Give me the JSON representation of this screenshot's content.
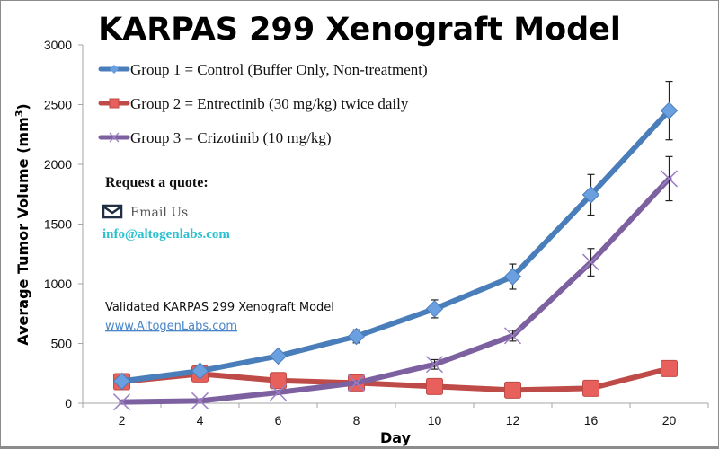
{
  "chart_data": {
    "type": "line",
    "title": "KARPAS 299 Xenograft Model",
    "xlabel": "Day",
    "ylabel_main": "Average Tumor Volume (mm",
    "ylabel_sup": "3",
    "ylabel_close": ")",
    "categories": [
      "2",
      "4",
      "6",
      "8",
      "10",
      "12",
      "16",
      "20"
    ],
    "ylim": [
      0,
      3000
    ],
    "yticks": [
      0,
      500,
      1000,
      1500,
      2000,
      2500,
      3000
    ],
    "grid": false,
    "legend_position": "top-left",
    "series": [
      {
        "name": "Group 1 = Control (Buffer Only, Non-treatment)",
        "color": "#4a7ebb",
        "marker_color": "#6a9fe0",
        "marker": "diamond",
        "values": [
          185,
          270,
          395,
          560,
          790,
          1060,
          1745,
          2450
        ],
        "errors": [
          null,
          null,
          null,
          55,
          75,
          105,
          170,
          245
        ]
      },
      {
        "name": "Group 2 = Entrectinib (30 mg/kg) twice daily",
        "color": "#be4b48",
        "marker_color": "#e8605c",
        "marker": "square",
        "values": [
          180,
          245,
          190,
          170,
          140,
          110,
          125,
          290
        ],
        "errors": [
          null,
          null,
          null,
          null,
          null,
          null,
          null,
          null
        ]
      },
      {
        "name": "Group 3 = Crizotinib (10 mg/kg)",
        "color": "#7d60a0",
        "marker_color": "#9b7fc4",
        "marker": "x",
        "values": [
          10,
          20,
          90,
          170,
          325,
          565,
          1180,
          1880
        ],
        "errors": [
          null,
          null,
          null,
          null,
          40,
          45,
          115,
          185
        ]
      }
    ]
  },
  "promo": {
    "request_quote": "Request a quote:",
    "email_label": "Email Us",
    "email_address": "info@altogenlabs.com",
    "validated_text": "Validated KARPAS 299 Xenograft Model",
    "website": "www.AltogenLabs.com",
    "email_icon": "envelope-icon"
  }
}
